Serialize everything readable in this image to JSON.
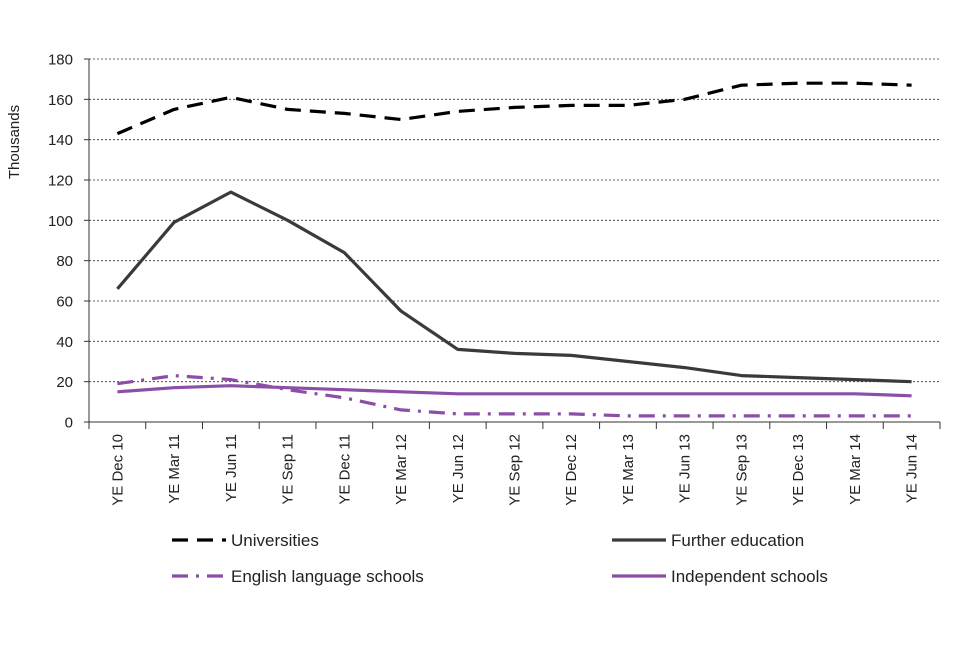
{
  "chart_data": {
    "type": "line",
    "title": "",
    "xlabel": "",
    "ylabel": "Thousands",
    "ylim": [
      0,
      180
    ],
    "yticks": [
      0,
      20,
      40,
      60,
      80,
      100,
      120,
      140,
      160,
      180
    ],
    "grid": "horizontal dashed",
    "legend_position": "bottom",
    "categories": [
      "YE Dec 10",
      "YE Mar 11",
      "YE Jun 11",
      "YE Sep 11",
      "YE Dec 11",
      "YE Mar 12",
      "YE Jun 12",
      "YE Sep 12",
      "YE Dec 12",
      "YE Mar 13",
      "YE Jun 13",
      "YE Sep 13",
      "YE Dec 13",
      "YE Mar 14",
      "YE Jun 14"
    ],
    "series": [
      {
        "name": "Universities",
        "color": "#000000",
        "style": "dashed",
        "values": [
          143,
          155,
          161,
          155,
          153,
          150,
          154,
          156,
          157,
          157,
          160,
          167,
          168,
          168,
          167
        ]
      },
      {
        "name": "Further education",
        "color": "#3a3a3a",
        "style": "solid",
        "values": [
          66,
          99,
          114,
          100,
          84,
          55,
          36,
          34,
          33,
          30,
          27,
          23,
          22,
          21,
          20
        ]
      },
      {
        "name": "English language schools",
        "color": "#8c4fa8",
        "style": "dash-dot",
        "values": [
          19,
          23,
          21,
          16,
          12,
          6,
          4,
          4,
          4,
          3,
          3,
          3,
          3,
          3,
          3
        ]
      },
      {
        "name": "Independent schools",
        "color": "#8c4fa8",
        "style": "solid",
        "values": [
          15,
          17,
          18,
          17,
          16,
          15,
          14,
          14,
          14,
          14,
          14,
          14,
          14,
          14,
          13
        ]
      }
    ]
  }
}
